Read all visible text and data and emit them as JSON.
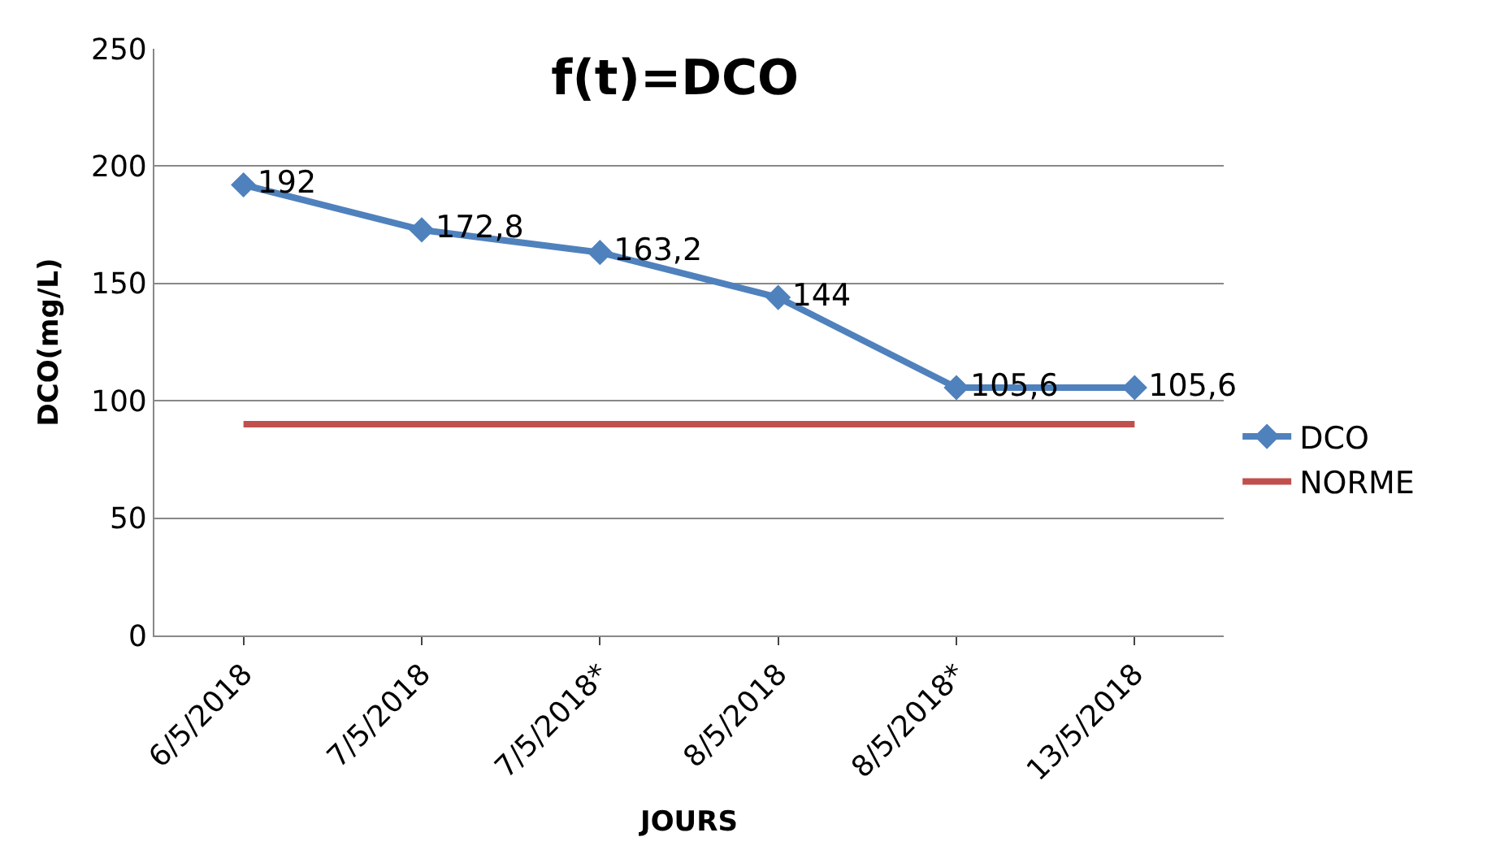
{
  "chart_data": {
    "type": "line",
    "title": "f(t)=DCO",
    "xlabel": "JOURS",
    "ylabel": "DCO(mg/L)",
    "categories": [
      "6/5/2018",
      "7/5/2018",
      "7/5/2018*",
      "8/5/2018",
      "8/5/2018*",
      "13/5/2018"
    ],
    "series": [
      {
        "name": "DCO",
        "color": "#4f81bd",
        "values": [
          192,
          172.8,
          163.2,
          144,
          105.6,
          105.6
        ],
        "marker": "diamond",
        "value_labels": [
          "192",
          "172,8",
          "163,2",
          "144",
          "105,6",
          "105,6"
        ]
      },
      {
        "name": "NORME",
        "color": "#c0504d",
        "values": [
          90,
          90,
          90,
          90,
          90,
          90
        ],
        "marker": "none"
      }
    ],
    "ylim": [
      0,
      250
    ],
    "yticks": [
      0,
      50,
      100,
      150,
      200,
      250
    ],
    "grid": "y",
    "legend": "right"
  }
}
